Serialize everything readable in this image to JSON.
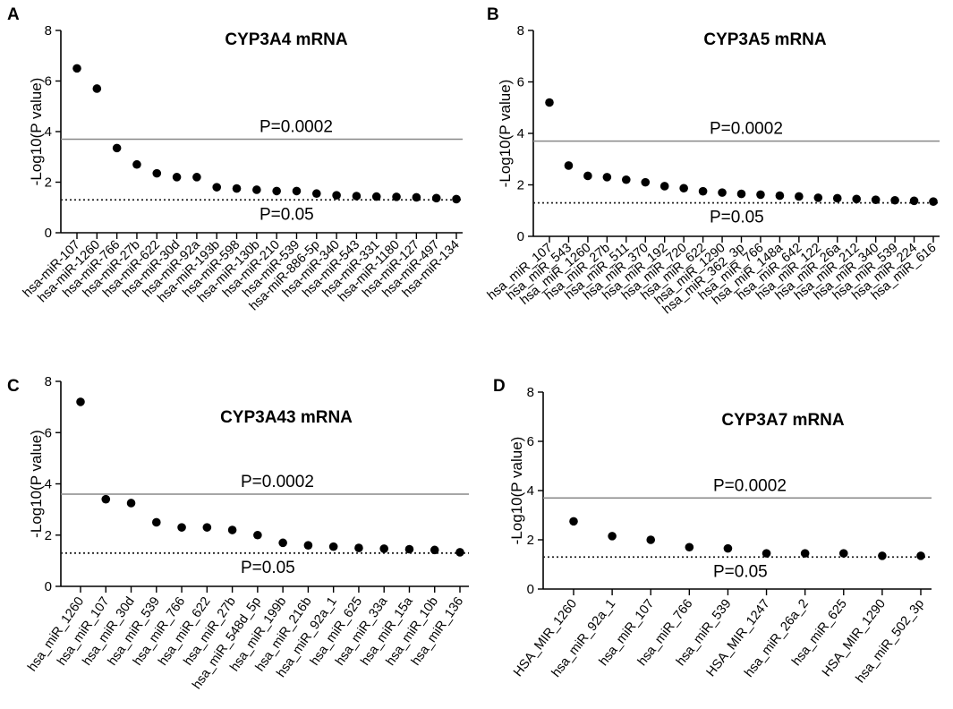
{
  "chart_data": [
    {
      "panel": "A",
      "type": "scatter",
      "title": "CYP3A4 mRNA",
      "ylabel": "-Log10(P value)",
      "xlabel": "",
      "ylim": [
        0,
        8
      ],
      "yticks": [
        0,
        2,
        4,
        6,
        8
      ],
      "categories": [
        "hsa-miR-107",
        "hsa-miR-1260",
        "hsa-miR-766",
        "hsa-miR-27b",
        "hsa-miR-622",
        "hsa-miR-30d",
        "hsa-miR-92a",
        "hsa-miR-193b",
        "hsa-miR-598",
        "hsa-miR-130b",
        "hsa-miR-210",
        "hsa-miR-539",
        "hsa-miR-886-5p",
        "hsa-miR-340",
        "hsa-miR-543",
        "hsa-miR-331",
        "hsa-miR-1180",
        "hsa-miR-127",
        "hsa-miR-497",
        "hsa-miR-134"
      ],
      "values": [
        6.5,
        5.7,
        3.35,
        2.7,
        2.35,
        2.2,
        2.2,
        1.8,
        1.75,
        1.7,
        1.65,
        1.65,
        1.55,
        1.48,
        1.45,
        1.43,
        1.42,
        1.4,
        1.37,
        1.33
      ],
      "thresholds": [
        {
          "value": 3.7,
          "label": "P=0.0002",
          "style": "solid"
        },
        {
          "value": 1.3,
          "label": "P=0.05",
          "style": "dotted"
        }
      ]
    },
    {
      "panel": "B",
      "type": "scatter",
      "title": "CYP3A5 mRNA",
      "ylabel": "-Log10(P value)",
      "xlabel": "",
      "ylim": [
        0,
        8
      ],
      "yticks": [
        0,
        2,
        4,
        6,
        8
      ],
      "categories": [
        "hsa_miR_107",
        "hsa_miR_543",
        "hsa_miR_1260",
        "hsa_miR_27b",
        "hsa_miR_511",
        "hsa_miR_370",
        "hsa_miR_192",
        "hsa_miR_720",
        "hsa_miR_622",
        "hsa_miR_1290",
        "hsa_miR_362_3p",
        "hsa_miR_766",
        "hsa_miR_148a",
        "hsa_miR_642",
        "hsa_miR_122",
        "hsa_miR_26a",
        "hsa_miR_212",
        "hsa_miR_340",
        "hsa_miR_539",
        "hsa_miR_224",
        "hsa_miR_616"
      ],
      "values": [
        5.2,
        2.75,
        2.35,
        2.3,
        2.2,
        2.1,
        1.95,
        1.87,
        1.75,
        1.7,
        1.65,
        1.62,
        1.58,
        1.55,
        1.5,
        1.48,
        1.45,
        1.42,
        1.4,
        1.38,
        1.35
      ],
      "thresholds": [
        {
          "value": 3.7,
          "label": "P=0.0002",
          "style": "solid"
        },
        {
          "value": 1.3,
          "label": "P=0.05",
          "style": "dotted"
        }
      ]
    },
    {
      "panel": "C",
      "type": "scatter",
      "title": "CYP3A43 mRNA",
      "ylabel": "-Log10(P value)",
      "xlabel": "",
      "ylim": [
        0,
        8
      ],
      "yticks": [
        0,
        2,
        4,
        6,
        8
      ],
      "categories": [
        "hsa_miR_1260",
        "hsa_miR_107",
        "hsa_miR_30d",
        "hsa_miR_539",
        "hsa_miR_766",
        "hsa_miR_622",
        "hsa_miR_27b",
        "hsa_miR_548d_5p",
        "hsa_miR_199b",
        "hsa_miR_216b",
        "hsa_miR_92a_1",
        "hsa_miR_625",
        "hsa_miR_33a",
        "hsa_miR_15a",
        "hsa_miR_10b",
        "hsa_miR_136"
      ],
      "values": [
        7.2,
        3.4,
        3.25,
        2.5,
        2.3,
        2.3,
        2.2,
        2.0,
        1.7,
        1.6,
        1.55,
        1.5,
        1.47,
        1.45,
        1.42,
        1.33
      ],
      "thresholds": [
        {
          "value": 3.6,
          "label": "P=0.0002",
          "style": "solid"
        },
        {
          "value": 1.3,
          "label": "P=0.05",
          "style": "dotted"
        }
      ]
    },
    {
      "panel": "D",
      "type": "scatter",
      "title": "CYP3A7 mRNA",
      "ylabel": "-Log10(P value)",
      "xlabel": "",
      "ylim": [
        0,
        8
      ],
      "yticks": [
        0,
        2,
        4,
        6,
        8
      ],
      "categories": [
        "HSA_MIR_1260",
        "hsa_miR_92a_1",
        "hsa_miR_107",
        "hsa_miR_766",
        "hsa_miR_539",
        "HSA_MIR_1247",
        "hsa_miR_26a_2",
        "hsa_miR_625",
        "HSA_MIR_1290",
        "hsa_miR_502_3p"
      ],
      "values": [
        2.75,
        2.15,
        2.0,
        1.7,
        1.65,
        1.45,
        1.45,
        1.45,
        1.35,
        1.35
      ],
      "thresholds": [
        {
          "value": 3.7,
          "label": "P=0.0002",
          "style": "solid"
        },
        {
          "value": 1.3,
          "label": "P=0.05",
          "style": "dotted"
        }
      ]
    }
  ]
}
